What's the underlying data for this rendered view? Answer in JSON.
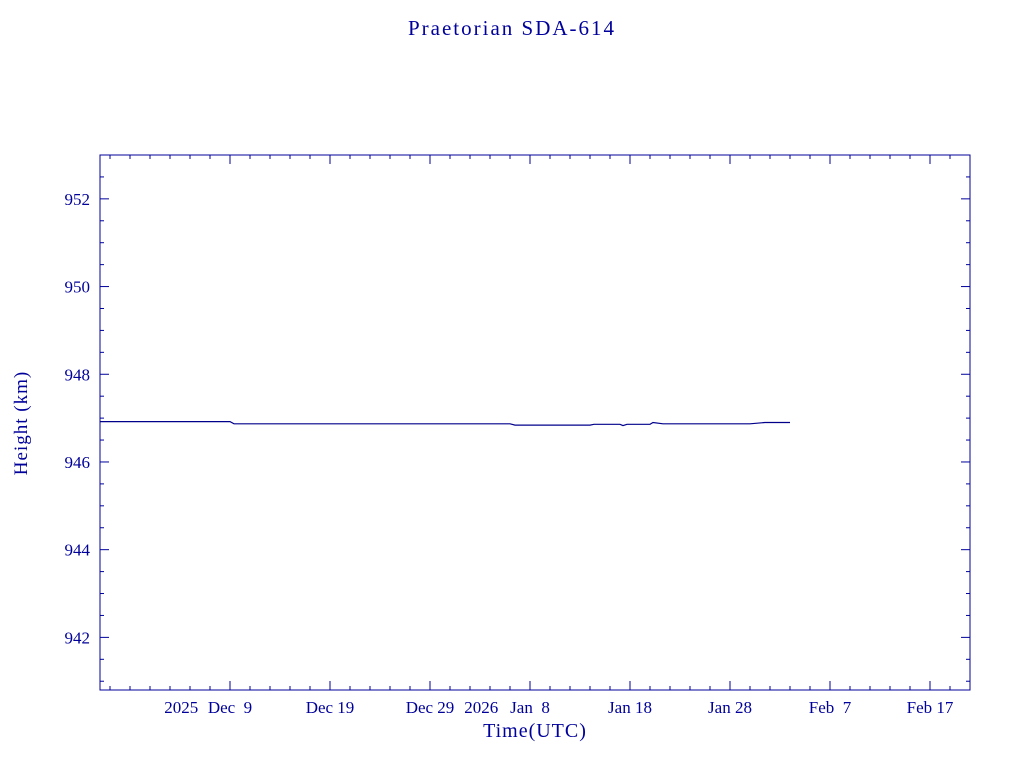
{
  "page": {
    "background": "#ffffff",
    "accent": "#00009b"
  },
  "chart_data": {
    "type": "line",
    "title": "Praetorian SDA-614",
    "xlabel": "Time(UTC)",
    "ylabel": "Height (km)",
    "x_unit": "days relative to 2025 Dec 9",
    "xlim": [
      -13,
      74
    ],
    "ylim": [
      940.8,
      953.0
    ],
    "grid": false,
    "legend": "none",
    "y_ticks": [
      942,
      944,
      946,
      948,
      950,
      952
    ],
    "y_minor_step": 0.5,
    "x_minor_step": 2,
    "x_major_ticks": [
      {
        "day": 0,
        "label": "Dec  9",
        "prefix": "2025"
      },
      {
        "day": 10,
        "label": "Dec 19"
      },
      {
        "day": 20,
        "label": "Dec 29"
      },
      {
        "day": 30,
        "label": "Jan  8",
        "prefix": "2026"
      },
      {
        "day": 40,
        "label": "Jan 18"
      },
      {
        "day": 50,
        "label": "Jan 28"
      },
      {
        "day": 60,
        "label": "Feb  7"
      },
      {
        "day": 70,
        "label": "Feb 17"
      }
    ],
    "series": [
      {
        "name": "height",
        "color": "#00008b",
        "points": [
          [
            -13,
            946.92
          ],
          [
            0,
            946.92
          ],
          [
            0.4,
            946.87
          ],
          [
            28,
            946.87
          ],
          [
            28.5,
            946.84
          ],
          [
            36,
            946.84
          ],
          [
            36.4,
            946.86
          ],
          [
            39,
            946.86
          ],
          [
            39.3,
            946.83
          ],
          [
            39.7,
            946.86
          ],
          [
            42,
            946.86
          ],
          [
            42.3,
            946.9
          ],
          [
            43.3,
            946.87
          ],
          [
            52,
            946.87
          ],
          [
            53.5,
            946.9
          ],
          [
            56,
            946.9
          ]
        ]
      }
    ]
  }
}
